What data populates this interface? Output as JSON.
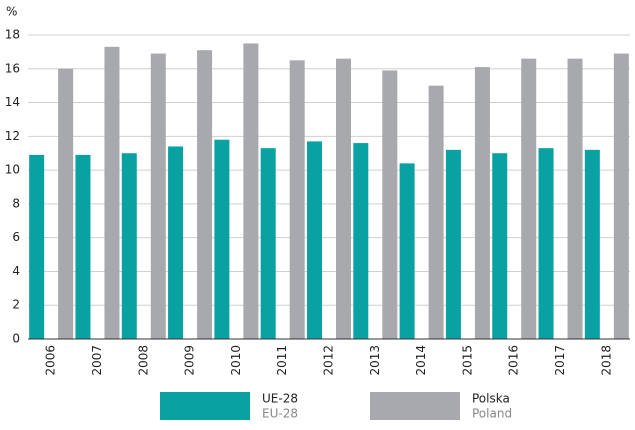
{
  "chart_data": {
    "type": "bar",
    "y_label": "%",
    "categories": [
      "2006",
      "2007",
      "2008",
      "2009",
      "2010",
      "2011",
      "2012",
      "2013",
      "2014",
      "2015",
      "2016",
      "2017",
      "2018"
    ],
    "series": [
      {
        "name": "UE-28",
        "name_en": "EU-28",
        "color": "#0aa1a3",
        "values": [
          10.9,
          10.9,
          11.0,
          11.4,
          11.8,
          11.3,
          11.7,
          11.6,
          10.4,
          11.2,
          11.0,
          11.3,
          11.2
        ]
      },
      {
        "name": "Polska",
        "name_en": "Poland",
        "color": "#a7a9ac",
        "values": [
          16.0,
          17.3,
          16.9,
          17.1,
          17.5,
          16.5,
          16.6,
          15.9,
          15.0,
          16.1,
          16.6,
          16.6,
          16.9
        ]
      }
    ],
    "ylim": [
      0,
      18
    ],
    "yticks": [
      0,
      2,
      4,
      6,
      8,
      10,
      12,
      14,
      16,
      18
    ],
    "grid": true
  }
}
